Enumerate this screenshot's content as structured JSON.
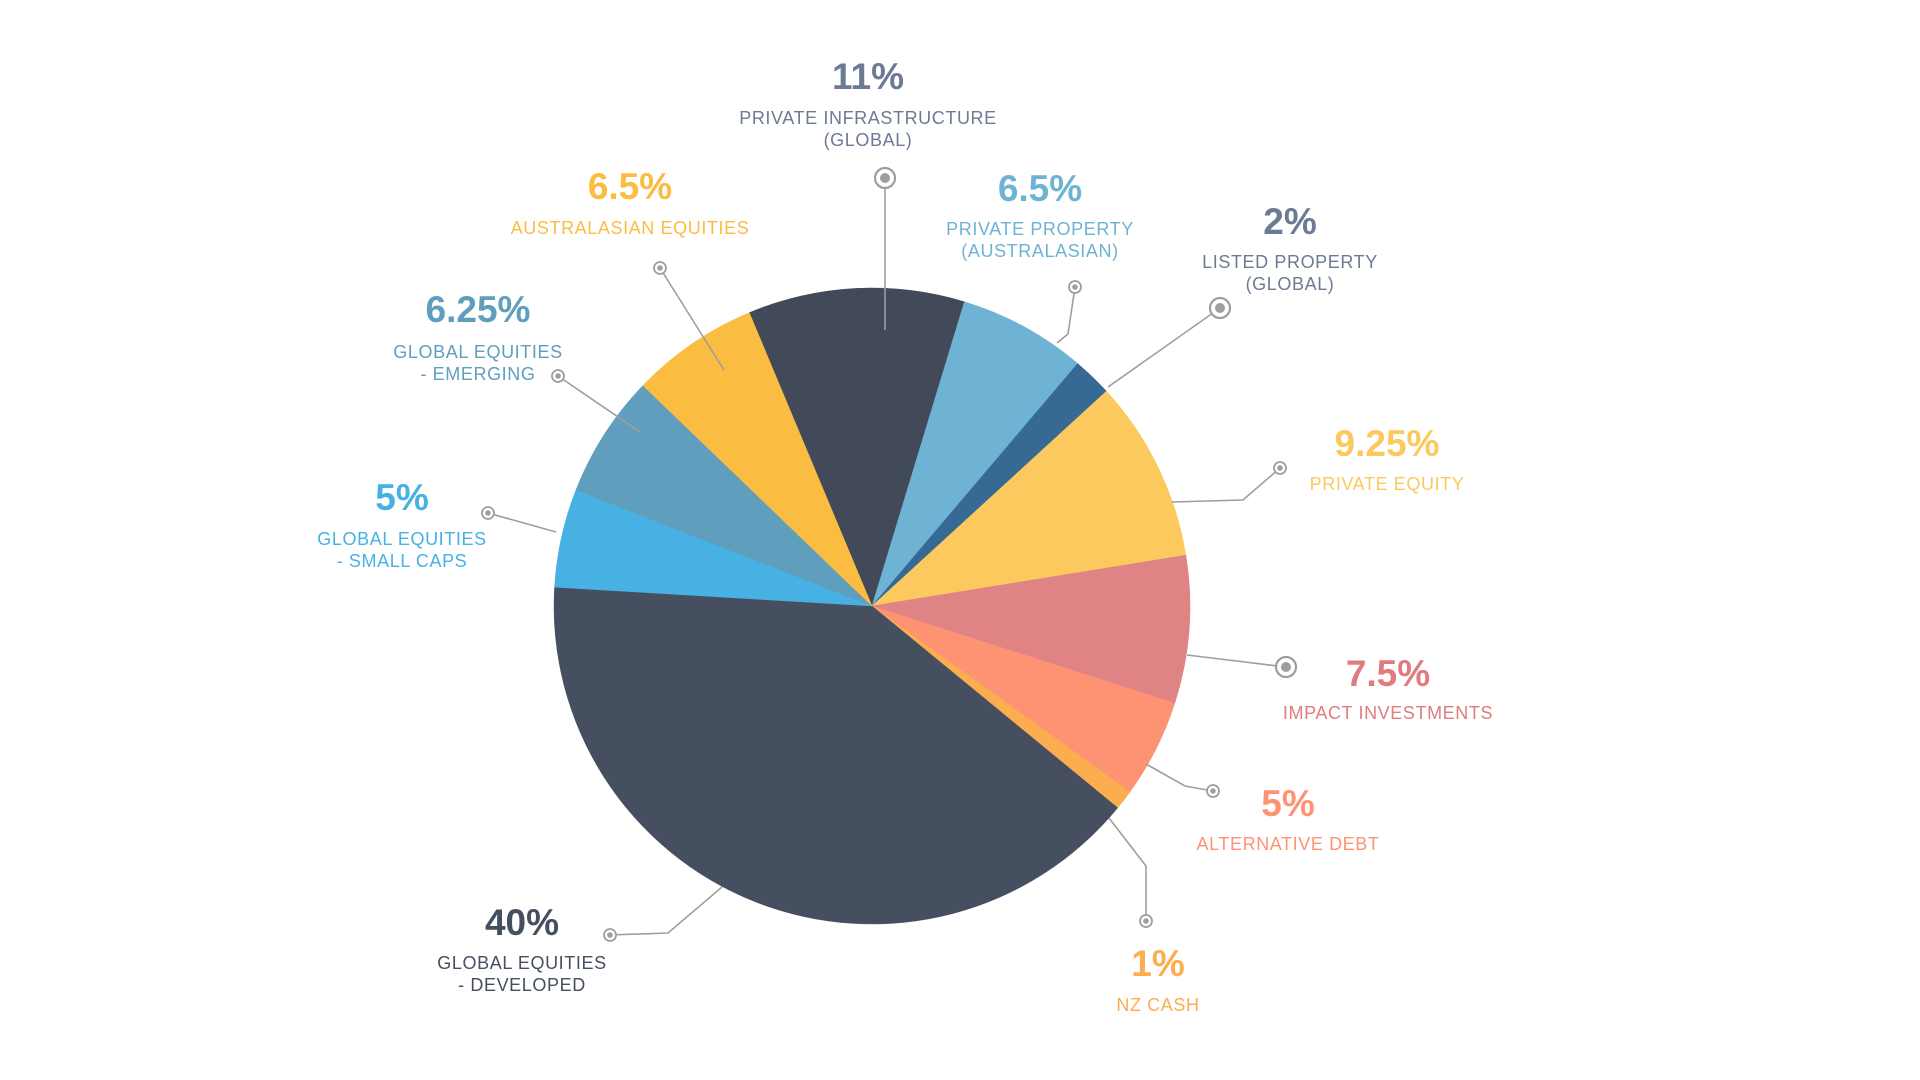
{
  "chart_data": {
    "type": "pie",
    "title": "",
    "slices": [
      {
        "label_lines": [
          "PRIVATE INFRASTRUCTURE",
          "(GLOBAL)"
        ],
        "value_label": "11%",
        "value": 11,
        "color": "#424a5a"
      },
      {
        "label_lines": [
          "PRIVATE PROPERTY",
          "(AUSTRALASIAN)"
        ],
        "value_label": "6.5%",
        "value": 6.5,
        "color": "#6fb3d4"
      },
      {
        "label_lines": [
          "LISTED PROPERTY",
          "(GLOBAL)"
        ],
        "value_label": "2%",
        "value": 2,
        "color": "#366994"
      },
      {
        "label_lines": [
          "PRIVATE EQUITY"
        ],
        "value_label": "9.25%",
        "value": 9.25,
        "color": "#fbc95e"
      },
      {
        "label_lines": [
          "IMPACT INVESTMENTS"
        ],
        "value_label": "7.5%",
        "value": 7.5,
        "color": "#e08385"
      },
      {
        "label_lines": [
          "ALTERNATIVE DEBT"
        ],
        "value_label": "5%",
        "value": 5,
        "color": "#fe9373"
      },
      {
        "label_lines": [
          "NZ CASH"
        ],
        "value_label": "1%",
        "value": 1,
        "color": "#fcad4f"
      },
      {
        "label_lines": [
          "GLOBAL EQUITIES",
          "- DEVELOPED"
        ],
        "value_label": "40%",
        "value": 40,
        "color": "#464f5f"
      },
      {
        "label_lines": [
          "GLOBAL EQUITIES",
          "- SMALL CAPS"
        ],
        "value_label": "5%",
        "value": 5,
        "color": "#48b1e4"
      },
      {
        "label_lines": [
          "GLOBAL EQUITIES",
          "- EMERGING"
        ],
        "value_label": "6.25%",
        "value": 6.25,
        "color": "#5f9ebd"
      },
      {
        "label_lines": [
          "AUSTRALASIAN EQUITIES"
        ],
        "value_label": "6.5%",
        "value": 6.5,
        "color": "#fbbc42"
      }
    ],
    "label_colors": [
      "#6d7a93",
      "#6fb3d4",
      "#6d7a93",
      "#fbc95e",
      "#e07b7e",
      "#fe9373",
      "#fcad4f",
      "#464f5f",
      "#48b1e4",
      "#5f9ebd",
      "#fbbc42"
    ],
    "connector_color": "#9e9e9e",
    "legend": "none"
  }
}
